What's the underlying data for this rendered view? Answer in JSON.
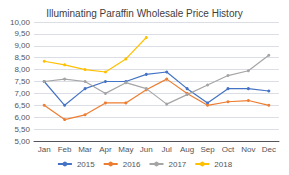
{
  "chart_data": {
    "type": "line",
    "title": "Illuminating Paraffin Wholesale Price History",
    "categories": [
      "Jan",
      "Feb",
      "Mar",
      "Apr",
      "May",
      "Jun",
      "Jul",
      "Aug",
      "Sep",
      "Oct",
      "Nov",
      "Dec"
    ],
    "series": [
      {
        "name": "2015",
        "color": "#4472C4",
        "values": [
          7.5,
          6.5,
          7.2,
          7.5,
          7.5,
          7.8,
          7.9,
          7.2,
          6.6,
          7.2,
          7.2,
          7.1
        ]
      },
      {
        "name": "2016",
        "color": "#ED7D31",
        "values": [
          6.5,
          5.9,
          6.1,
          6.6,
          6.6,
          7.15,
          7.6,
          7.0,
          6.5,
          6.65,
          6.7,
          6.5
        ]
      },
      {
        "name": "2017",
        "color": "#A5A5A5",
        "values": [
          7.5,
          7.6,
          7.5,
          7.0,
          7.45,
          7.2,
          6.55,
          6.95,
          7.35,
          7.75,
          7.95,
          8.6
        ]
      },
      {
        "name": "2018",
        "color": "#FFC000",
        "values": [
          8.35,
          8.2,
          8.0,
          7.9,
          8.45,
          9.35,
          null,
          null,
          null,
          null,
          null,
          null
        ]
      }
    ],
    "ylim": [
      5.0,
      10.0
    ],
    "yticks": [
      {
        "value": 5.0,
        "label": "5,00"
      },
      {
        "value": 5.5,
        "label": "5,50"
      },
      {
        "value": 6.0,
        "label": "6,00"
      },
      {
        "value": 6.5,
        "label": "6,50"
      },
      {
        "value": 7.0,
        "label": "7,00"
      },
      {
        "value": 7.5,
        "label": "7,50"
      },
      {
        "value": 8.0,
        "label": "8,00"
      },
      {
        "value": 8.5,
        "label": "8,50"
      },
      {
        "value": 9.0,
        "label": "9,00"
      },
      {
        "value": 9.5,
        "label": "9,50"
      },
      {
        "value": 10.0,
        "label": "10,00"
      }
    ],
    "grid": true,
    "legend": "bottom",
    "marker": "circle"
  }
}
